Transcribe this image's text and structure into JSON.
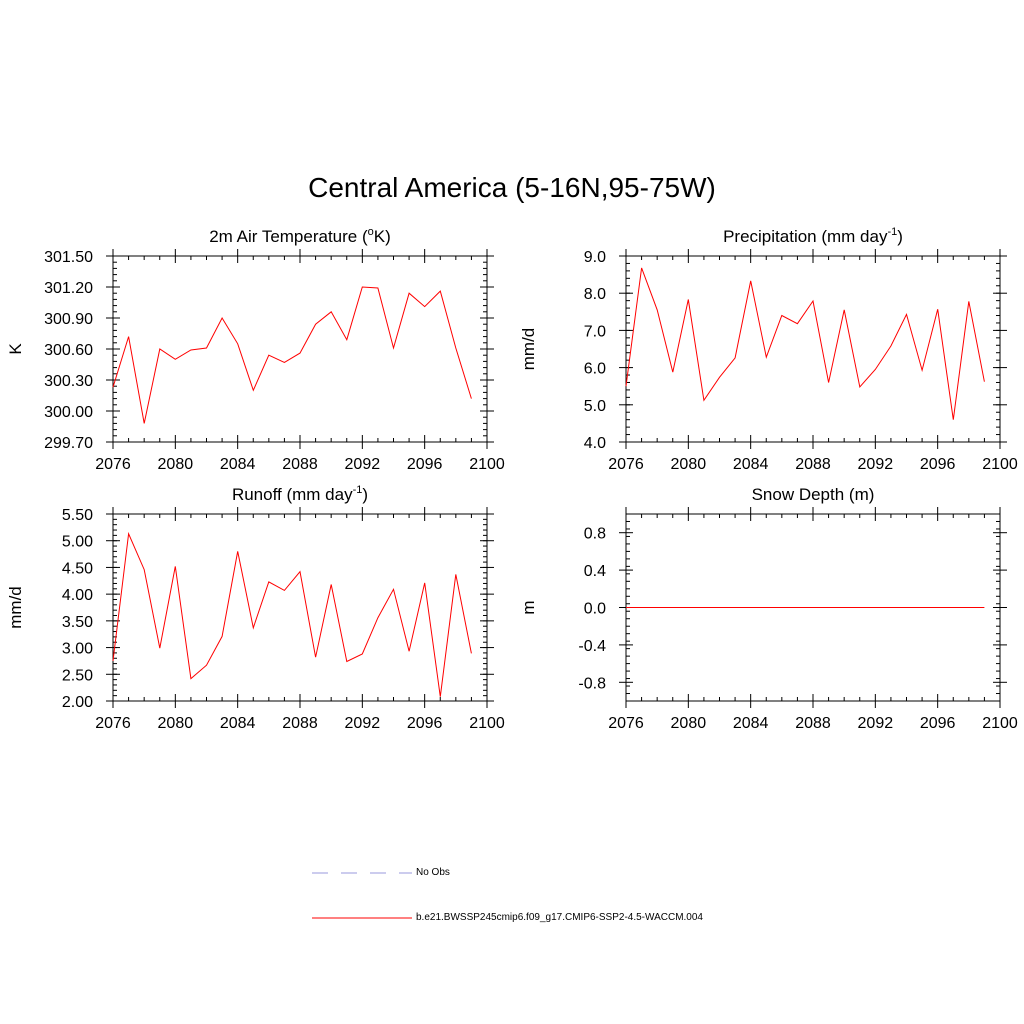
{
  "title": "Central America (5-16N,95-75W)",
  "legend": {
    "obs_label": "No Obs",
    "model_label": "b.e21.BWSSP245cmip6.f09_g17.CMIP6-SSP2-4.5-WACCM.004",
    "obs_color": "#9999dd",
    "model_color": "#ff0000"
  },
  "chart_data": [
    {
      "type": "line",
      "title": "2m Air Temperature (°K)",
      "title_main": "2m Air Temperature (",
      "title_sup": "o",
      "title_end": "K)",
      "ylabel": "K",
      "xlim": [
        2076,
        2100
      ],
      "ylim": [
        299.7,
        301.5
      ],
      "xticks": [
        2076,
        2080,
        2084,
        2088,
        2092,
        2096,
        2100
      ],
      "yticks": [
        299.7,
        300.0,
        300.3,
        300.6,
        300.9,
        301.2,
        301.5
      ],
      "ytick_labels": [
        "299.70",
        "300.00",
        "300.30",
        "300.60",
        "300.90",
        "301.20",
        "301.50"
      ],
      "series": [
        {
          "x": [
            2076,
            2077,
            2078,
            2079,
            2080,
            2081,
            2082,
            2083,
            2084,
            2085,
            2086,
            2087,
            2088,
            2089,
            2090,
            2091,
            2092,
            2093,
            2094,
            2095,
            2096,
            2097,
            2098,
            2099
          ],
          "y": [
            300.23,
            300.72,
            299.88,
            300.6,
            300.5,
            300.59,
            300.61,
            300.9,
            300.65,
            300.2,
            300.54,
            300.47,
            300.56,
            300.84,
            300.96,
            300.69,
            301.2,
            301.19,
            300.61,
            301.14,
            301.01,
            301.16,
            300.61,
            300.12
          ]
        }
      ]
    },
    {
      "type": "line",
      "title": "Precipitation (mm day-1)",
      "title_main": "Precipitation (mm day",
      "title_sup": "-1",
      "title_end": ")",
      "ylabel": "mm/d",
      "xlim": [
        2076,
        2100
      ],
      "ylim": [
        4.0,
        9.0
      ],
      "xticks": [
        2076,
        2080,
        2084,
        2088,
        2092,
        2096,
        2100
      ],
      "yticks": [
        4.0,
        5.0,
        6.0,
        7.0,
        8.0,
        9.0
      ],
      "ytick_labels": [
        "4.0",
        "5.0",
        "6.0",
        "7.0",
        "8.0",
        "9.0"
      ],
      "series": [
        {
          "x": [
            2076,
            2077,
            2078,
            2079,
            2080,
            2081,
            2082,
            2083,
            2084,
            2085,
            2086,
            2087,
            2088,
            2089,
            2090,
            2091,
            2092,
            2093,
            2094,
            2095,
            2096,
            2097,
            2098,
            2099
          ],
          "y": [
            5.5,
            8.68,
            7.55,
            5.88,
            7.83,
            5.12,
            5.74,
            6.26,
            8.33,
            6.28,
            7.4,
            7.18,
            7.79,
            5.6,
            7.55,
            5.48,
            5.95,
            6.58,
            7.43,
            5.93,
            7.57,
            4.6,
            7.78,
            5.62
          ]
        }
      ]
    },
    {
      "type": "line",
      "title": "Runoff (mm day-1)",
      "title_main": "Runoff (mm day",
      "title_sup": "-1",
      "title_end": ")",
      "ylabel": "mm/d",
      "xlim": [
        2076,
        2100
      ],
      "ylim": [
        2.0,
        5.5
      ],
      "xticks": [
        2076,
        2080,
        2084,
        2088,
        2092,
        2096,
        2100
      ],
      "yticks": [
        2.0,
        2.5,
        3.0,
        3.5,
        4.0,
        4.5,
        5.0,
        5.5
      ],
      "ytick_labels": [
        "2.00",
        "2.50",
        "3.00",
        "3.50",
        "4.00",
        "4.50",
        "5.00",
        "5.50"
      ],
      "series": [
        {
          "x": [
            2076,
            2077,
            2078,
            2079,
            2080,
            2081,
            2082,
            2083,
            2084,
            2085,
            2086,
            2087,
            2088,
            2089,
            2090,
            2091,
            2092,
            2093,
            2094,
            2095,
            2096,
            2097,
            2098,
            2099
          ],
          "y": [
            2.75,
            5.13,
            4.46,
            2.99,
            4.52,
            2.42,
            2.67,
            3.21,
            4.8,
            3.37,
            4.23,
            4.07,
            4.42,
            2.82,
            4.18,
            2.74,
            2.88,
            3.56,
            4.09,
            2.93,
            4.21,
            2.08,
            4.37,
            2.89
          ]
        }
      ]
    },
    {
      "type": "line",
      "title": "Snow Depth (m)",
      "title_main": "Snow Depth (m)",
      "title_sup": "",
      "title_end": "",
      "ylabel": "m",
      "xlim": [
        2076,
        2100
      ],
      "ylim": [
        -1.0,
        1.0
      ],
      "xticks": [
        2076,
        2080,
        2084,
        2088,
        2092,
        2096,
        2100
      ],
      "yticks": [
        -0.8,
        -0.4,
        0.0,
        0.4,
        0.8
      ],
      "ytick_labels": [
        "-0.8",
        "-0.4",
        "0.0",
        "0.4",
        "0.8"
      ],
      "series": [
        {
          "x": [
            2076,
            2077,
            2078,
            2079,
            2080,
            2081,
            2082,
            2083,
            2084,
            2085,
            2086,
            2087,
            2088,
            2089,
            2090,
            2091,
            2092,
            2093,
            2094,
            2095,
            2096,
            2097,
            2098,
            2099
          ],
          "y": [
            0,
            0,
            0,
            0,
            0,
            0,
            0,
            0,
            0,
            0,
            0,
            0,
            0,
            0,
            0,
            0,
            0,
            0,
            0,
            0,
            0,
            0,
            0,
            0
          ]
        }
      ]
    }
  ]
}
